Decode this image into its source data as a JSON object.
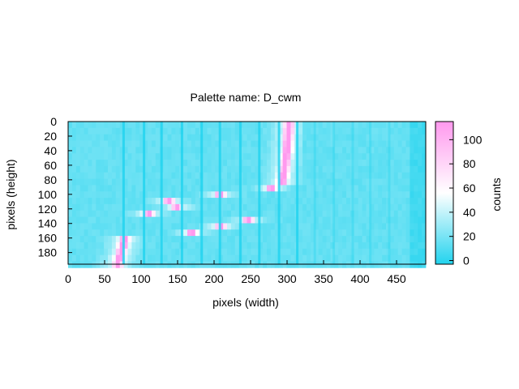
{
  "chart_data": {
    "type": "heatmap",
    "title": "Palette name: D_cwm",
    "xlabel": "pixels (width)",
    "ylabel": "pixels (height)",
    "xlim": [
      0,
      490
    ],
    "ylim": [
      196,
      0
    ],
    "x_ticks": [
      "0",
      "50",
      "100",
      "150",
      "200",
      "250",
      "300",
      "350",
      "400",
      "450"
    ],
    "y_ticks": [
      "0",
      "20",
      "40",
      "60",
      "80",
      "100",
      "120",
      "140",
      "160",
      "180"
    ],
    "colorbar": {
      "label": "counts",
      "range": [
        -3,
        115
      ],
      "ticks": [
        "0",
        "20",
        "40",
        "60",
        "80",
        "100"
      ],
      "colors": [
        "#22d3ee",
        "#ffffff",
        "#ff99ee"
      ]
    },
    "background_counts": 15,
    "band": {
      "description_x_at_y": [
        {
          "y": 196,
          "x": 68
        },
        {
          "y": 160,
          "x": 78
        },
        {
          "y": 130,
          "x": 95
        },
        {
          "y": 112,
          "x": 115
        },
        {
          "y": 118,
          "x": 150
        },
        {
          "y": 145,
          "x": 205
        },
        {
          "y": 148,
          "x": 230
        },
        {
          "y": 130,
          "x": 270
        },
        {
          "y": 90,
          "x": 292
        },
        {
          "y": 40,
          "x": 300
        },
        {
          "y": 0,
          "x": 303
        }
      ],
      "peak_counts": 90
    },
    "dark_stripes_x": [
      76,
      104,
      128,
      156,
      183,
      208,
      236,
      262,
      289,
      314,
      338,
      364,
      390,
      414,
      440
    ]
  }
}
